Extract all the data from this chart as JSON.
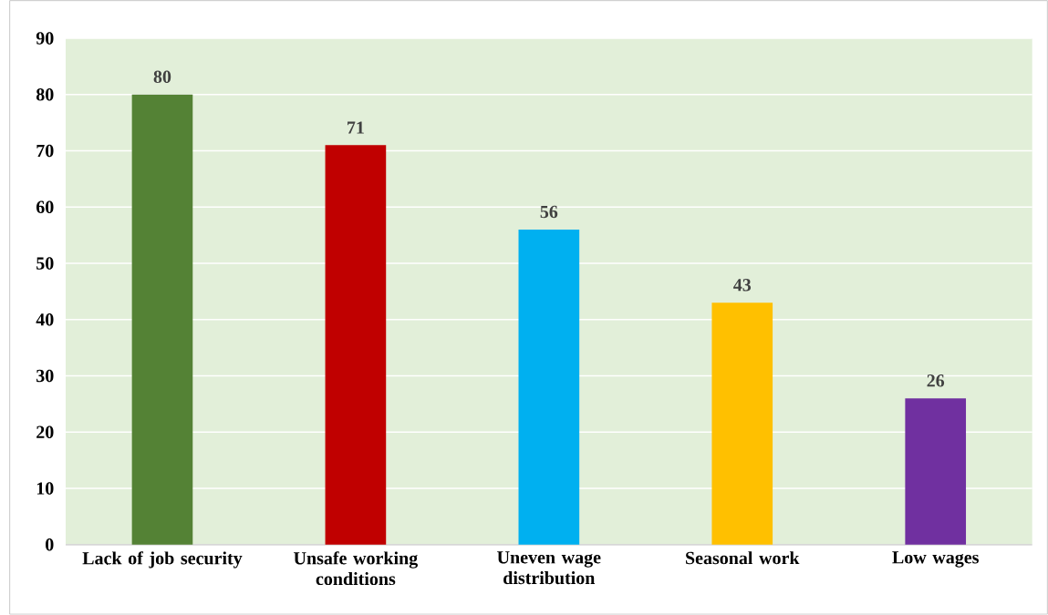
{
  "chart_data": {
    "type": "bar",
    "categories": [
      "Lack of job security",
      "Unsafe working conditions",
      "Uneven wage distribution",
      "Seasonal work",
      "Low wages"
    ],
    "values": [
      80,
      71,
      56,
      43,
      26
    ],
    "colors": [
      "#548235",
      "#c00000",
      "#00b0f0",
      "#ffc000",
      "#7030a0"
    ],
    "ylim": [
      0,
      90
    ],
    "yticks": [
      0,
      10,
      20,
      30,
      40,
      50,
      60,
      70,
      80,
      90
    ],
    "grid": "y",
    "data_labels": true
  }
}
